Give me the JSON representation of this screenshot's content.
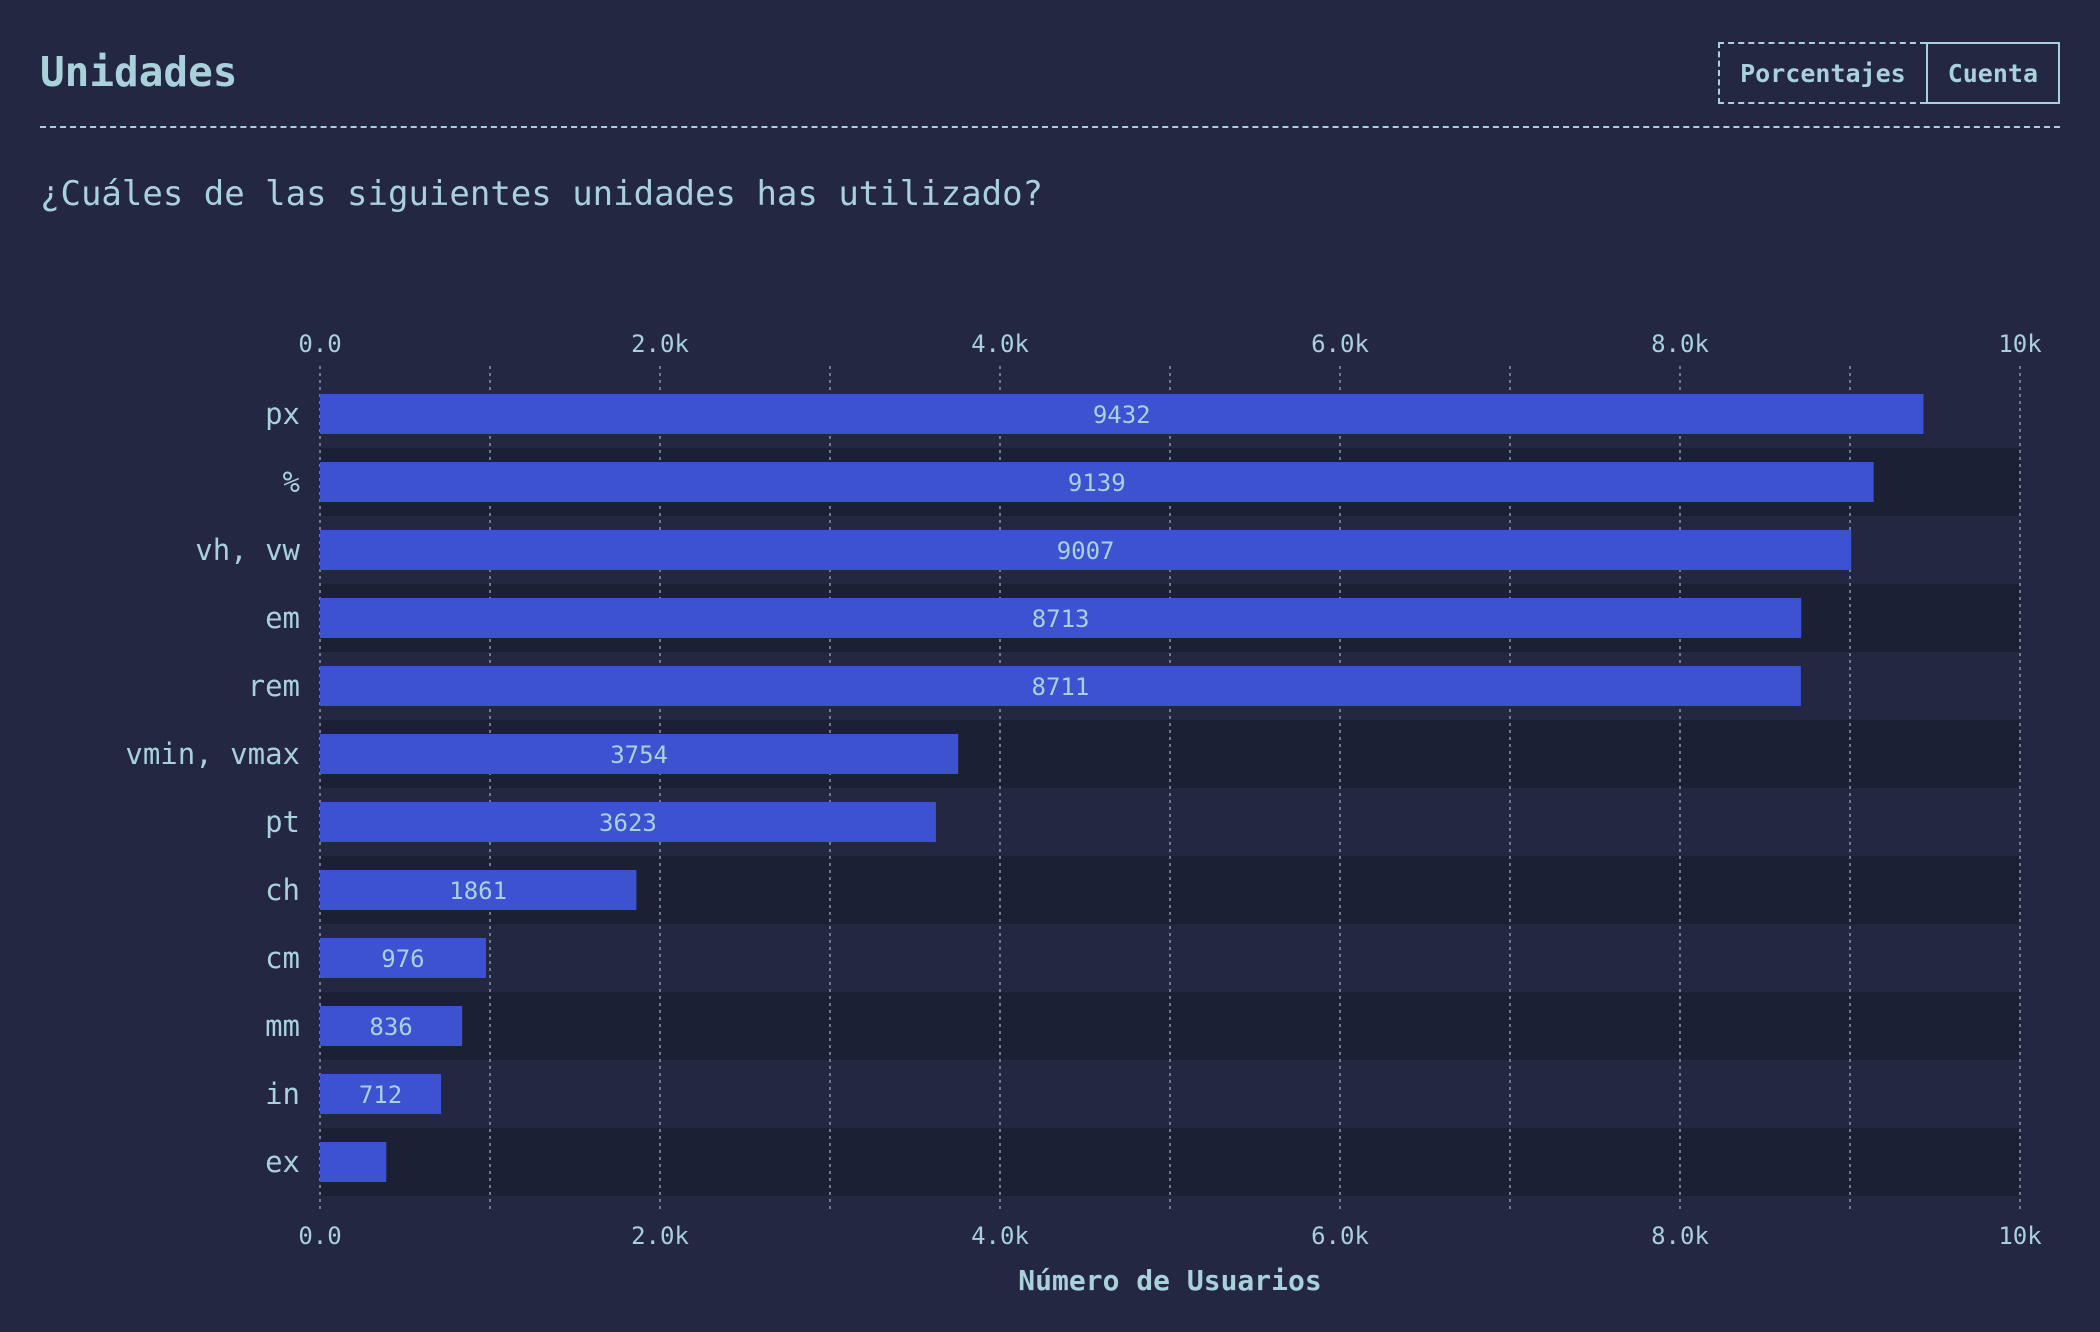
{
  "header": {
    "title": "Unidades",
    "toggles": [
      "Porcentajes",
      "Cuenta"
    ],
    "active_toggle": "Cuenta"
  },
  "question": "¿Cuáles de las siguientes unidades has utilizado?",
  "colors": {
    "background": "#232741",
    "bar": "#3c52d1",
    "text": "#a9d1dc",
    "row_alt": "#1c2034",
    "grid": "#6d7a8e"
  },
  "chart_data": {
    "type": "bar",
    "orientation": "horizontal",
    "categories": [
      "px",
      "%",
      "vh, vw",
      "em",
      "rem",
      "vmin, vmax",
      "pt",
      "ch",
      "cm",
      "mm",
      "in",
      "ex"
    ],
    "values": [
      9432,
      9139,
      9007,
      8713,
      8711,
      3754,
      3623,
      1861,
      976,
      836,
      712,
      390
    ],
    "data_labels": [
      "9432",
      "9139",
      "9007",
      "8713",
      "8711",
      "3754",
      "3623",
      "1861",
      "976",
      "836",
      "712",
      ""
    ],
    "xlim": [
      0,
      10000
    ],
    "ticks": [
      0,
      2000,
      4000,
      6000,
      8000,
      10000
    ],
    "tick_labels": [
      "0.0",
      "2.0k",
      "4.0k",
      "6.0k",
      "8.0k",
      "10k"
    ],
    "minor_gridlines": [
      1000,
      3000,
      5000,
      7000,
      9000
    ],
    "xlabel": "Número de Usuarios",
    "ylabel": "",
    "grid": true,
    "tick_axes": [
      "top",
      "bottom"
    ]
  }
}
